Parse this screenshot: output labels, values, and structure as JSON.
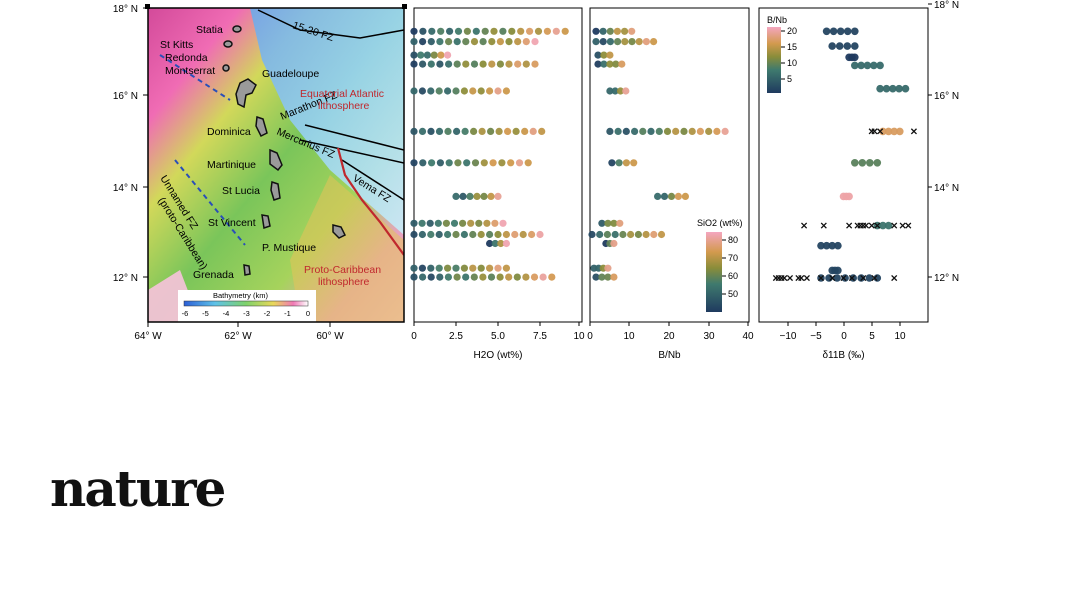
{
  "figure": {
    "lat_ticks": [
      "18° N",
      "16° N",
      "14° N",
      "12° N"
    ],
    "lon_ticks": [
      "64° W",
      "62° W",
      "60° W"
    ],
    "map_labels": {
      "statia": "Statia",
      "st_kitts": "St Kitts",
      "redonda": "Redonda",
      "montserrat": "Montserrat",
      "guadeloupe": "Guadeloupe",
      "dominica": "Dominica",
      "martinique": "Martinique",
      "st_lucia": "St Lucia",
      "st_vincent": "St Vincent",
      "p_mustique": "P. Mustique",
      "grenada": "Grenada",
      "fz_15_20": "15-20 FZ",
      "marathon_fz": "Marathon FZ",
      "mercurius_fz": "Mercurius FZ",
      "vema_fz": "Vema FZ",
      "unnamed_fz": "Unnamed FZ",
      "proto_caribbean_paren": "(proto-Caribbean)",
      "eq_atlantic": "Equatorial Atlantic",
      "lithosphere": "lithosphere",
      "proto_caribbean": "Proto-Caribbean"
    },
    "bathymetry": {
      "title": "Bathymetry (km)",
      "ticks": [
        "-6",
        "-5",
        "-4",
        "-3",
        "-2",
        "-1",
        "0"
      ]
    },
    "sio2_colorbar": {
      "title": "SiO2 (wt%)",
      "ticks": [
        "80",
        "70",
        "60",
        "50"
      ],
      "range": [
        44,
        82
      ]
    },
    "bnb_colorbar": {
      "title": "B/Nb",
      "ticks": [
        "20",
        "15",
        "10",
        "5"
      ],
      "range": [
        2,
        21
      ]
    },
    "colors": {
      "low": "#1f3a5f",
      "mid": "#6f8c3a",
      "mid_high": "#d39a4e",
      "high": "#f4a6bf",
      "highlight": "#c0282d",
      "fz_line": "#000000"
    }
  },
  "chart_data": [
    {
      "type": "scatter",
      "xlabel": "H2O (wt%)",
      "xlim": [
        0,
        10
      ],
      "x_ticks": [
        "0",
        "2.5",
        "5.0",
        "7.5",
        "10"
      ],
      "ylim": [
        11,
        18
      ],
      "colored_by": "SiO2 (wt%)",
      "rows": [
        {
          "lat": 17.48,
          "x0": 0.0,
          "x1": 9.0
        },
        {
          "lat": 17.25,
          "x0": 0.0,
          "x1": 7.2
        },
        {
          "lat": 16.95,
          "x0": 0.0,
          "x1": 2.0
        },
        {
          "lat": 16.75,
          "x0": 0.0,
          "x1": 7.2
        },
        {
          "lat": 16.15,
          "x0": 0.0,
          "x1": 5.5
        },
        {
          "lat": 15.25,
          "x0": 0.0,
          "x1": 7.6
        },
        {
          "lat": 14.55,
          "x0": 0.0,
          "x1": 6.8
        },
        {
          "lat": 13.8,
          "x0": 2.5,
          "x1": 5.0
        },
        {
          "lat": 13.2,
          "x0": 0.0,
          "x1": 5.3
        },
        {
          "lat": 12.95,
          "x0": 0.0,
          "x1": 7.5
        },
        {
          "lat": 12.75,
          "x0": 4.5,
          "x1": 5.5
        },
        {
          "lat": 12.2,
          "x0": 0.0,
          "x1": 5.5
        },
        {
          "lat": 12.0,
          "x0": 0.0,
          "x1": 8.2
        }
      ]
    },
    {
      "type": "scatter",
      "xlabel": "B/Nb",
      "xlim": [
        0,
        40
      ],
      "x_ticks": [
        "0",
        "10",
        "20",
        "30",
        "40"
      ],
      "ylim": [
        11,
        18
      ],
      "colored_by": "SiO2 (wt%)",
      "rows": [
        {
          "lat": 17.48,
          "x0": 1.5,
          "x1": 10.5
        },
        {
          "lat": 17.25,
          "x0": 1.5,
          "x1": 16.0
        },
        {
          "lat": 16.95,
          "x0": 2.0,
          "x1": 5.0
        },
        {
          "lat": 16.75,
          "x0": 2.0,
          "x1": 8.0
        },
        {
          "lat": 16.15,
          "x0": 5.0,
          "x1": 9.0
        },
        {
          "lat": 15.25,
          "x0": 5.0,
          "x1": 34.0
        },
        {
          "lat": 14.55,
          "x0": 5.5,
          "x1": 11.0
        },
        {
          "lat": 13.8,
          "x0": 17.0,
          "x1": 24.0
        },
        {
          "lat": 13.2,
          "x0": 3.0,
          "x1": 7.5
        },
        {
          "lat": 12.95,
          "x0": 0.5,
          "x1": 18.0
        },
        {
          "lat": 12.75,
          "x0": 4.0,
          "x1": 6.0
        },
        {
          "lat": 12.2,
          "x0": 1.0,
          "x1": 4.5
        },
        {
          "lat": 12.0,
          "x0": 1.5,
          "x1": 6.0
        }
      ]
    },
    {
      "type": "scatter",
      "xlabel": "δ11B (‰)",
      "xlim": [
        -15,
        15
      ],
      "x_ticks": [
        "−10",
        "−5",
        "0",
        "5",
        "10"
      ],
      "ylim": [
        11,
        18
      ],
      "colored_by": "B/Nb",
      "point_rows": [
        {
          "lat": 17.48,
          "x0": -3.0,
          "x1": 2.0,
          "bnb": 3
        },
        {
          "lat": 17.15,
          "x0": -2.0,
          "x1": 2.0,
          "bnb": 3
        },
        {
          "lat": 16.9,
          "x0": 1.0,
          "x1": 2.0,
          "bnb": 2
        },
        {
          "lat": 16.72,
          "x0": 2.0,
          "x1": 6.5,
          "bnb": 7
        },
        {
          "lat": 16.2,
          "x0": 6.5,
          "x1": 11.0,
          "bnb": 7
        },
        {
          "lat": 15.25,
          "x0": 7.0,
          "x1": 10.0,
          "bnb": 17
        },
        {
          "lat": 14.55,
          "x0": 2.0,
          "x1": 6.0,
          "bnb": 10
        },
        {
          "lat": 13.8,
          "x0": 0.0,
          "x1": 1.0,
          "bnb": 20
        },
        {
          "lat": 13.15,
          "x0": 6.0,
          "x1": 8.0,
          "bnb": 8
        },
        {
          "lat": 12.7,
          "x0": -4.0,
          "x1": -1.0,
          "bnb": 3
        },
        {
          "lat": 12.15,
          "x0": -2.0,
          "x1": -1.0,
          "bnb": 3
        },
        {
          "lat": 11.98,
          "x0": -4.0,
          "x1": 6.0,
          "bnb": 3
        }
      ],
      "cross_rows": [
        {
          "lat": 15.25,
          "x": [
            5.0,
            5.5,
            6.5,
            12.5
          ]
        },
        {
          "lat": 13.15,
          "x": [
            -7.0,
            -3.5,
            1.0,
            2.5,
            3.0,
            3.5,
            4.0,
            5.0,
            6.0,
            9.0,
            10.5,
            11.5
          ]
        },
        {
          "lat": 11.98,
          "x": [
            -12.0,
            -11.5,
            -11.0,
            -10.5,
            -9.5,
            -8.0,
            -7.5,
            -6.5,
            -4.0,
            -2.0,
            0.0,
            1.5,
            3.5,
            5.5,
            9.0
          ]
        }
      ]
    }
  ],
  "publisher": "nature"
}
